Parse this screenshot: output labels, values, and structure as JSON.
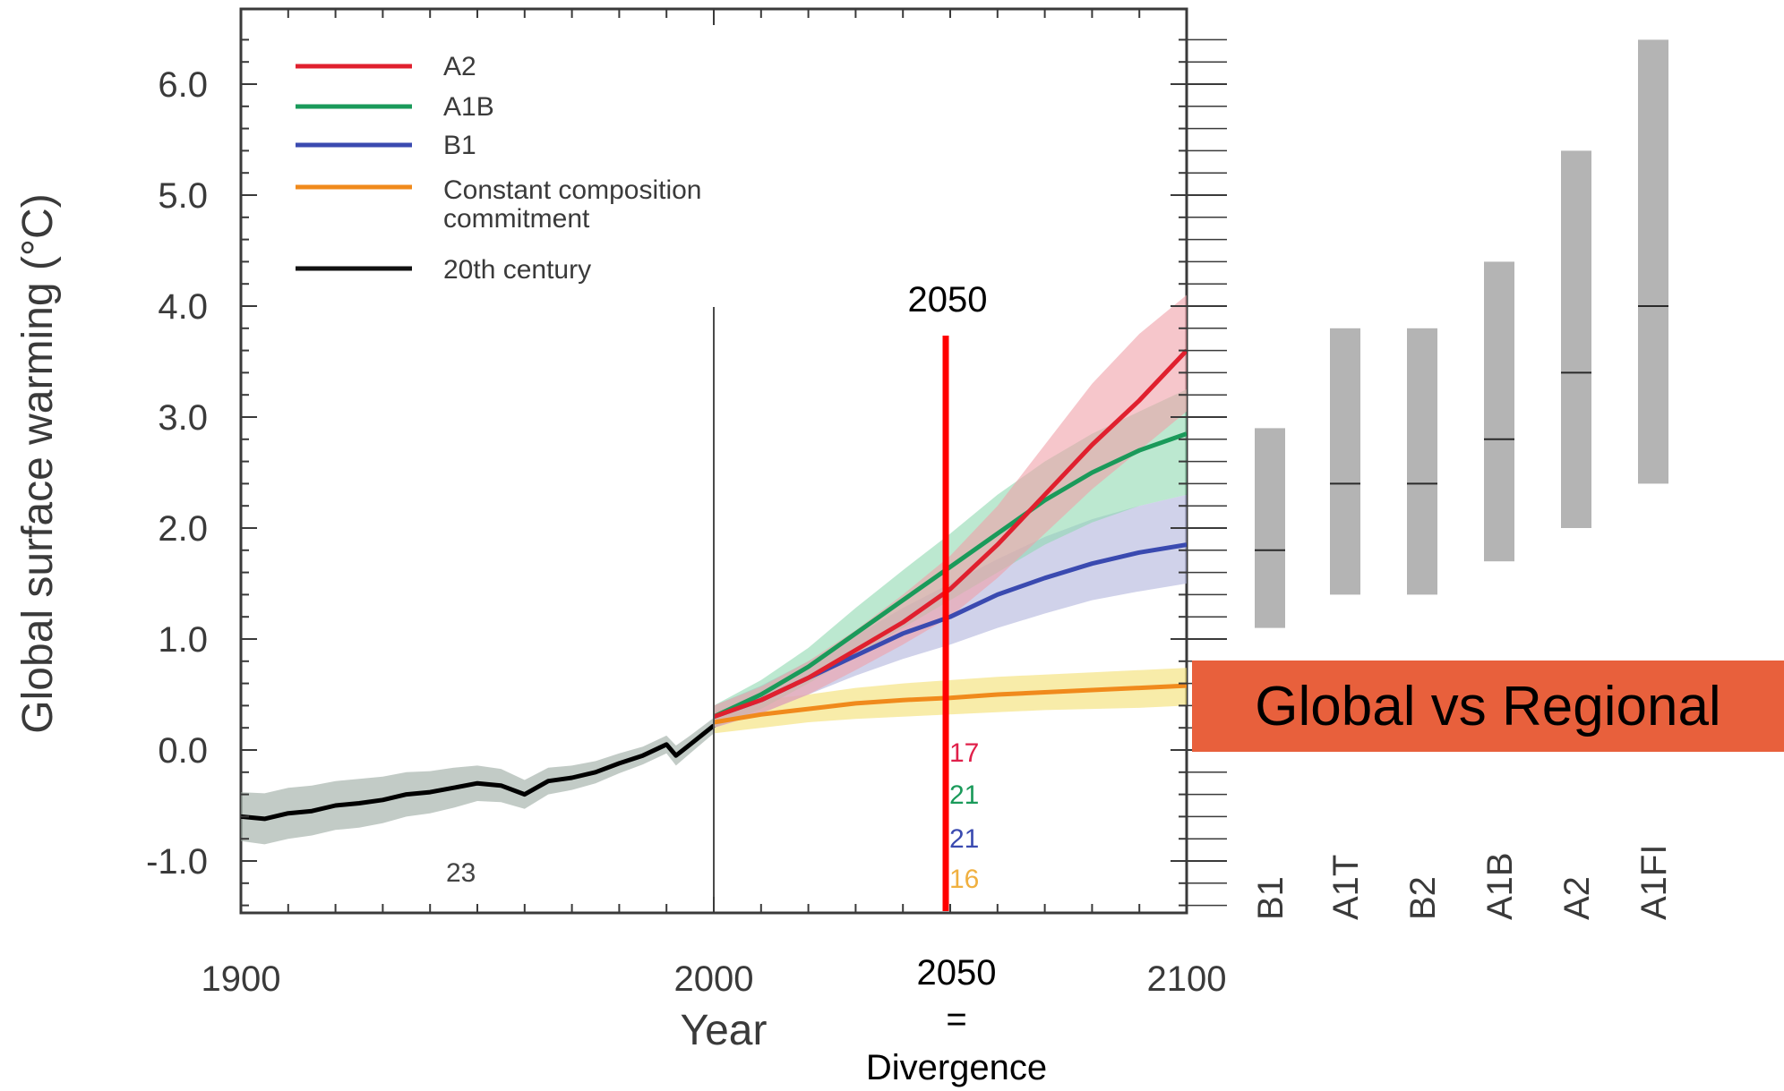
{
  "chart_data": [
    {
      "type": "line",
      "xlabel": "Year",
      "ylabel": "Global surface warming (°C)",
      "xlim": [
        1900,
        2100
      ],
      "ylim": [
        -1.5,
        6.5
      ],
      "x_ticks": [
        1900,
        2000,
        2100
      ],
      "y_ticks": [
        -1.0,
        0.0,
        1.0,
        2.0,
        3.0,
        4.0,
        5.0,
        6.0
      ],
      "y_tick_labels": [
        "-1.0",
        "0.0",
        "1.0",
        "2.0",
        "3.0",
        "4.0",
        "5.0",
        "6.0"
      ],
      "x_tick_labels": [
        "1900",
        "2000",
        "2100"
      ],
      "legend": {
        "placement": "top-left"
      },
      "series": [
        {
          "name": "A2",
          "color": "#e0202e",
          "band_color": "#f0a0a8",
          "x": [
            2000,
            2010,
            2020,
            2030,
            2040,
            2050,
            2060,
            2070,
            2080,
            2090,
            2100
          ],
          "y": [
            0.3,
            0.45,
            0.65,
            0.9,
            1.15,
            1.45,
            1.85,
            2.3,
            2.75,
            3.15,
            3.6
          ],
          "lower": [
            0.2,
            0.33,
            0.5,
            0.72,
            0.95,
            1.2,
            1.55,
            1.95,
            2.35,
            2.7,
            3.05
          ],
          "upper": [
            0.4,
            0.57,
            0.8,
            1.08,
            1.4,
            1.75,
            2.2,
            2.75,
            3.3,
            3.75,
            4.1
          ]
        },
        {
          "name": "A1B",
          "color": "#1a9a5a",
          "band_color": "#90d8b0",
          "x": [
            2000,
            2010,
            2020,
            2030,
            2040,
            2050,
            2060,
            2070,
            2080,
            2090,
            2100
          ],
          "y": [
            0.3,
            0.5,
            0.75,
            1.05,
            1.35,
            1.65,
            1.95,
            2.25,
            2.5,
            2.7,
            2.85
          ],
          "lower": [
            0.2,
            0.37,
            0.6,
            0.85,
            1.1,
            1.35,
            1.6,
            1.85,
            2.05,
            2.2,
            2.3
          ],
          "upper": [
            0.4,
            0.63,
            0.92,
            1.28,
            1.62,
            1.95,
            2.3,
            2.6,
            2.85,
            3.05,
            3.25
          ]
        },
        {
          "name": "B1",
          "color": "#3a4ab0",
          "band_color": "#b0b4dc",
          "x": [
            2000,
            2010,
            2020,
            2030,
            2040,
            2050,
            2060,
            2070,
            2080,
            2090,
            2100
          ],
          "y": [
            0.3,
            0.45,
            0.65,
            0.85,
            1.05,
            1.2,
            1.4,
            1.55,
            1.68,
            1.78,
            1.85
          ],
          "lower": [
            0.2,
            0.33,
            0.5,
            0.67,
            0.82,
            0.95,
            1.1,
            1.23,
            1.35,
            1.43,
            1.5
          ],
          "upper": [
            0.4,
            0.58,
            0.8,
            1.03,
            1.28,
            1.5,
            1.72,
            1.92,
            2.08,
            2.2,
            2.3
          ]
        },
        {
          "name": "Constant composition commitment",
          "color": "#f08a1c",
          "band_color": "#f4e070",
          "x": [
            2000,
            2010,
            2020,
            2030,
            2040,
            2050,
            2060,
            2070,
            2080,
            2090,
            2100
          ],
          "y": [
            0.25,
            0.32,
            0.37,
            0.42,
            0.45,
            0.47,
            0.5,
            0.52,
            0.54,
            0.56,
            0.58
          ],
          "lower": [
            0.15,
            0.2,
            0.25,
            0.28,
            0.3,
            0.32,
            0.34,
            0.36,
            0.37,
            0.38,
            0.4
          ],
          "upper": [
            0.35,
            0.45,
            0.5,
            0.56,
            0.6,
            0.63,
            0.66,
            0.68,
            0.7,
            0.72,
            0.74
          ]
        },
        {
          "name": "20th century",
          "color": "#000000",
          "band_color": "#9aa8a0",
          "x": [
            1900,
            1905,
            1910,
            1915,
            1920,
            1925,
            1930,
            1935,
            1940,
            1945,
            1950,
            1955,
            1960,
            1965,
            1970,
            1975,
            1980,
            1985,
            1990,
            1992,
            1995,
            2000
          ],
          "y": [
            -0.6,
            -0.62,
            -0.57,
            -0.55,
            -0.5,
            -0.48,
            -0.45,
            -0.4,
            -0.38,
            -0.34,
            -0.3,
            -0.32,
            -0.4,
            -0.28,
            -0.25,
            -0.2,
            -0.12,
            -0.05,
            0.05,
            -0.05,
            0.05,
            0.22
          ],
          "lower": [
            -0.82,
            -0.85,
            -0.8,
            -0.77,
            -0.72,
            -0.7,
            -0.66,
            -0.6,
            -0.57,
            -0.52,
            -0.46,
            -0.47,
            -0.53,
            -0.4,
            -0.36,
            -0.3,
            -0.21,
            -0.13,
            -0.03,
            -0.14,
            -0.03,
            0.15
          ],
          "upper": [
            -0.38,
            -0.39,
            -0.34,
            -0.32,
            -0.28,
            -0.26,
            -0.24,
            -0.2,
            -0.19,
            -0.16,
            -0.14,
            -0.17,
            -0.27,
            -0.16,
            -0.14,
            -0.1,
            -0.03,
            0.03,
            0.13,
            0.04,
            0.13,
            0.29
          ]
        }
      ],
      "model_counts": [
        {
          "value": "17",
          "color": "#e0204a"
        },
        {
          "value": "21",
          "color": "#1a9a5a"
        },
        {
          "value": "21",
          "color": "#3a4ab0"
        },
        {
          "value": "16",
          "color": "#f0b040"
        }
      ],
      "model_count_20c": "23",
      "annotations": {
        "marker_year": 2050,
        "marker_top_label": "2050",
        "marker_bottom_lines": [
          "2050",
          "=",
          "Divergence"
        ],
        "marker_color": "#ff0000"
      }
    },
    {
      "type": "range_bar",
      "categories": [
        "B1",
        "A1T",
        "B2",
        "A1B",
        "A2",
        "A1FI"
      ],
      "best_estimate": [
        1.8,
        2.4,
        2.4,
        2.8,
        3.4,
        4.0
      ],
      "low": [
        1.1,
        1.4,
        1.4,
        1.7,
        2.0,
        2.4
      ],
      "high": [
        2.9,
        3.8,
        3.8,
        4.4,
        5.4,
        6.4
      ],
      "bar_color": "#b4b4b4"
    }
  ],
  "callout": {
    "text": "Global vs Regional",
    "background": "#e8603c"
  }
}
